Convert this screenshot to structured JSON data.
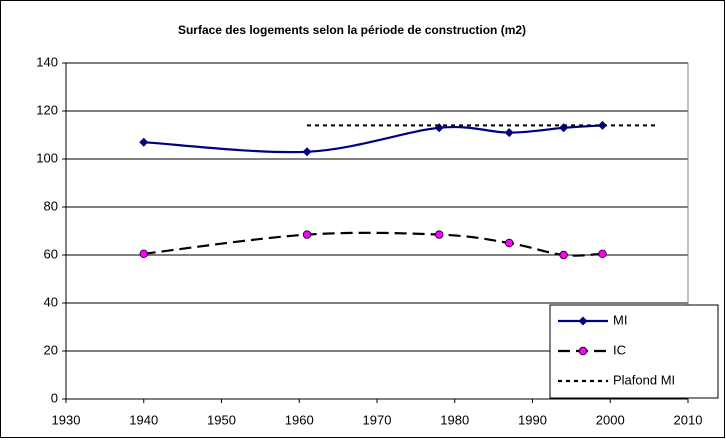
{
  "chart_data": {
    "type": "line",
    "title": "Surface des logements selon la période de construction (m2)",
    "xlim": [
      1930,
      2010
    ],
    "xticks": [
      1930,
      1940,
      1950,
      1960,
      1970,
      1980,
      1990,
      2000,
      2010
    ],
    "ylim": [
      0,
      140
    ],
    "yticks": [
      0,
      20,
      40,
      60,
      80,
      100,
      120,
      140
    ],
    "grid": true,
    "legend": "bottom-right",
    "series": [
      {
        "name": "MI",
        "color": "#000080",
        "marker": "diamond",
        "dash": "solid",
        "smooth": true,
        "x": [
          1940,
          1961,
          1978,
          1987,
          1994,
          1999
        ],
        "values": [
          107,
          103,
          113,
          111,
          113,
          114
        ]
      },
      {
        "name": "IC",
        "color": "#000000",
        "marker_color": "#ff00ff",
        "marker": "circle",
        "dash": "dashed",
        "smooth": true,
        "x": [
          1940,
          1961,
          1978,
          1987,
          1994,
          1999
        ],
        "values": [
          60.5,
          68.5,
          68.5,
          65,
          60,
          60.5
        ]
      },
      {
        "name": "Plafond MI",
        "color": "#000000",
        "marker": "none",
        "dash": "dotted",
        "smooth": false,
        "x": [
          1961,
          2006
        ],
        "values": [
          114,
          114
        ]
      }
    ]
  }
}
